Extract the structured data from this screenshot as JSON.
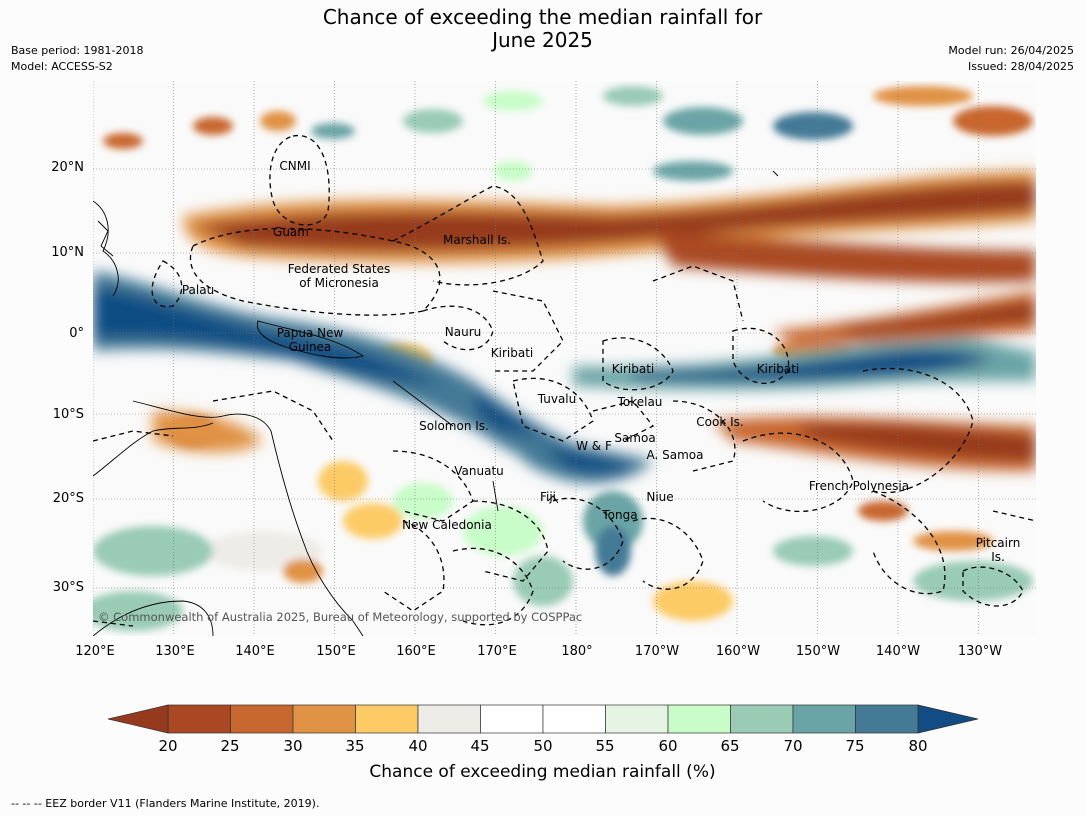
{
  "title_line1": "Chance of exceeding the median rainfall for",
  "title_line2": "June 2025",
  "meta_left": [
    "Base period: 1981-2018",
    "Model: ACCESS-S2"
  ],
  "meta_right": [
    "Model run: 26/04/2025",
    "Issued: 28/04/2025"
  ],
  "lat_ticks": [
    "20°N",
    "10°N",
    "0°",
    "10°S",
    "20°S",
    "30°S"
  ],
  "lon_ticks": [
    "120°E",
    "130°E",
    "140°E",
    "150°E",
    "160°E",
    "170°E",
    "180°",
    "170°W",
    "160°W",
    "150°W",
    "140°W",
    "130°W"
  ],
  "region_labels": [
    "CNMI",
    "Guam",
    "Marshall Is.",
    "Federated States",
    "of Micronesia",
    "Palau",
    "Papua New",
    "Guinea",
    "Nauru",
    "Kiribati",
    "Kiribati",
    "Kiribati",
    "Tuvalu",
    "Tokelau",
    "Cook Is.",
    "Solomon Is.",
    "Samoa",
    "W & F",
    "A. Samoa",
    "Vanuatu",
    "Fiji",
    "Niue",
    "Tonga",
    "French Polynesia",
    "New Caledonia",
    "Pitcairn",
    "Is."
  ],
  "copyright": "© Commonwealth of Australia 2025, Bureau of Meteorology, supported by COSPPac",
  "colorbar": {
    "ticks": [
      "20",
      "25",
      "30",
      "35",
      "40",
      "45",
      "50",
      "55",
      "60",
      "65",
      "70",
      "75",
      "80"
    ],
    "colors": [
      "#aa4824",
      "#c8662f",
      "#e09245",
      "#fccb66",
      "#eeece7",
      "#ffffff",
      "#ffffff",
      "#e6f5e3",
      "#c8fcc8",
      "#99cbb5",
      "#6aa4a6",
      "#457a96"
    ],
    "low_extend_color": "#963a1e",
    "high_extend_color": "#114d84",
    "title": "Chance of exceeding median rainfall (%)"
  },
  "footnote": "--  --  -- EEZ border V11 (Flanders Marine Institute, 2019)."
}
